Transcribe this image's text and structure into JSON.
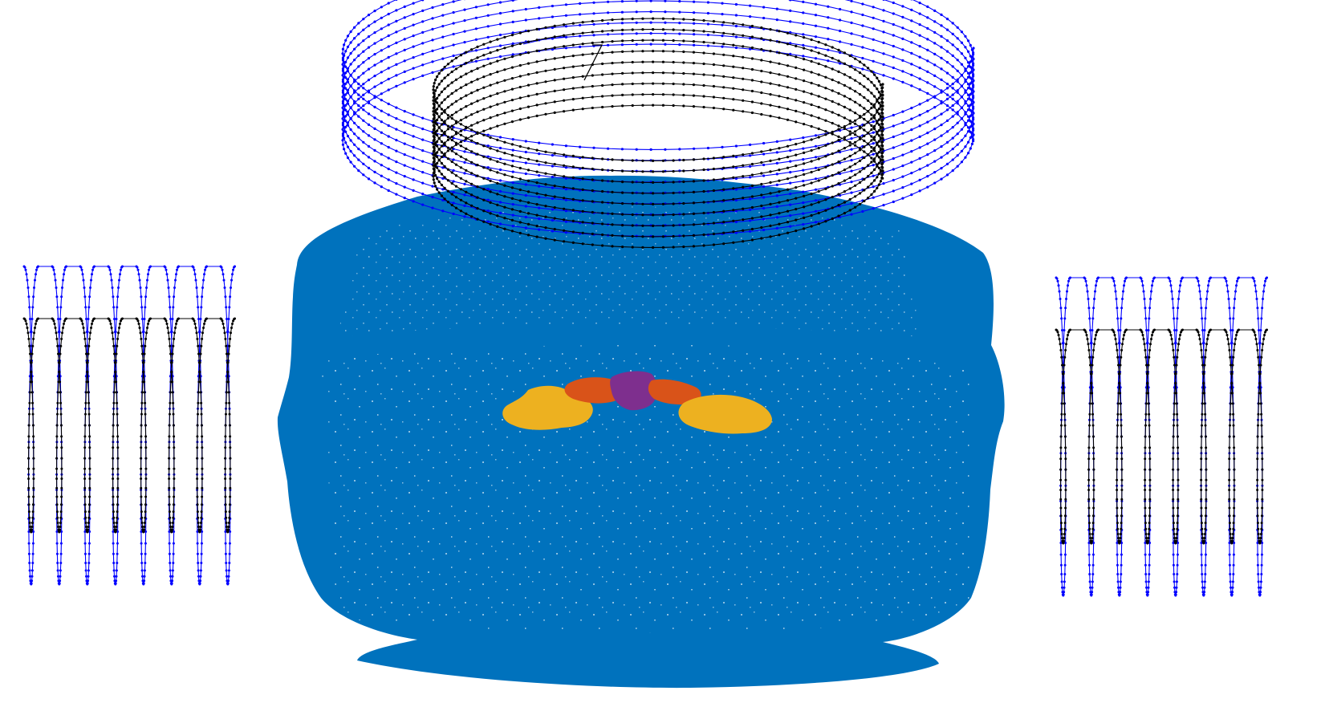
{
  "colors": {
    "background": "#ffffff",
    "head_point_cloud": "#0072bd",
    "outer_coil_path": "#0000ff",
    "inner_coil_path": "#000000",
    "region_yellow": "#edb120",
    "region_orange": "#d95319",
    "region_purple": "#7e2f8e"
  },
  "scene": {
    "head": {
      "name": "head-point-cloud"
    },
    "top_coils": {
      "outer": {
        "name": "outer-helical-coil",
        "turns": 9
      },
      "inner": {
        "name": "inner-helical-coil",
        "turns": 9
      }
    },
    "side_coils": [
      {
        "name": "left-side-coil",
        "turns": 8
      },
      {
        "name": "right-side-coil",
        "turns": 8
      }
    ],
    "brain_regions": [
      {
        "name": "left-yellow-region",
        "color_key": "region_yellow"
      },
      {
        "name": "left-orange-region",
        "color_key": "region_orange"
      },
      {
        "name": "center-purple-region",
        "color_key": "region_purple"
      },
      {
        "name": "right-orange-region",
        "color_key": "region_orange"
      },
      {
        "name": "right-yellow-region",
        "color_key": "region_yellow"
      }
    ]
  }
}
